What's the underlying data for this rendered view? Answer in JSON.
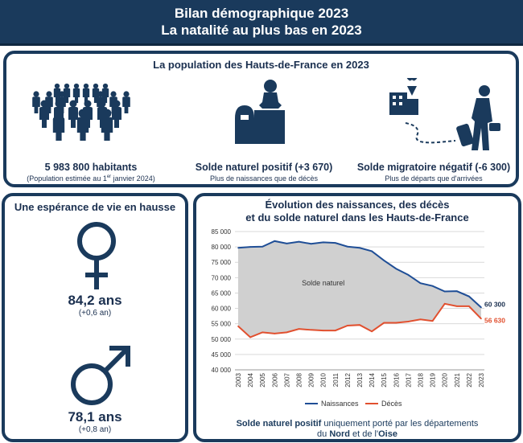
{
  "header": {
    "title_line1": "Bilan démographique 2023",
    "title_line2": "La natalité au plus bas en 2023"
  },
  "top_panel": {
    "title": "La population des Hauts-de-France en 2023",
    "population": {
      "value": "5 983 800 habitants",
      "note_prefix": "(Population estimée au 1",
      "note_sup": "er",
      "note_suffix": " janvier 2024)"
    },
    "natural_balance": {
      "value": "Solde naturel positif (+3 670)",
      "note": "Plus de naissances que de décès"
    },
    "migration_balance": {
      "value": "Solde migratoire négatif (-6 300)",
      "note": "Plus de départs que d'arrivées"
    }
  },
  "life_expectancy": {
    "title": "Une espérance de vie en hausse",
    "female": {
      "age": "84,2 ans",
      "delta": "(+0,6 an)",
      "icon": "female-symbol-icon"
    },
    "male": {
      "age": "78,1 ans",
      "delta": "(+0,8 an)",
      "icon": "male-symbol-icon"
    }
  },
  "chart_panel": {
    "title_line1": "Évolution des naissances, des décès",
    "title_line2": "et du solde naturel dans les Hauts-de-France",
    "footnote_bold1": "Solde naturel positif",
    "footnote_mid": " uniquement porté par les départements",
    "footnote_prefix2": "du ",
    "footnote_bold2": "Nord",
    "footnote_mid2": " et de l'",
    "footnote_bold3": "Oise"
  },
  "chart_data": {
    "type": "line",
    "title": "",
    "xlabel": "",
    "ylabel": "",
    "ylim": [
      40000,
      85000
    ],
    "yticks": [
      40000,
      45000,
      50000,
      55000,
      60000,
      65000,
      70000,
      75000,
      80000,
      85000
    ],
    "ytick_labels": [
      "40 000",
      "45 000",
      "50 000",
      "55 000",
      "60 000",
      "65 000",
      "70 000",
      "75 000",
      "80 000",
      "85 000"
    ],
    "x": [
      "2003",
      "2004",
      "2005",
      "2006",
      "2007",
      "2008",
      "2009",
      "2010",
      "2011",
      "2012",
      "2013",
      "2014",
      "2015",
      "2016",
      "2017",
      "2018",
      "2019",
      "2020",
      "2021",
      "2022",
      "2023"
    ],
    "series": [
      {
        "name": "Naissances",
        "color": "#1f4e96",
        "values": [
          79700,
          80000,
          80100,
          81900,
          81100,
          81700,
          81000,
          81500,
          81300,
          80100,
          79700,
          78600,
          75600,
          72900,
          70900,
          68200,
          67300,
          65500,
          65600,
          63900,
          60300
        ],
        "end_label": "60 300"
      },
      {
        "name": "Décès",
        "color": "#e1502f",
        "values": [
          54200,
          50600,
          52200,
          51800,
          52200,
          53300,
          53000,
          52800,
          52800,
          54400,
          54600,
          52500,
          55300,
          55300,
          55700,
          56400,
          55900,
          61500,
          60700,
          60700,
          56630
        ],
        "end_label": "56 630"
      }
    ],
    "area_label": "Solde naturel",
    "area_color": "#d0d0d0",
    "grid": true,
    "legend": "bottom"
  }
}
